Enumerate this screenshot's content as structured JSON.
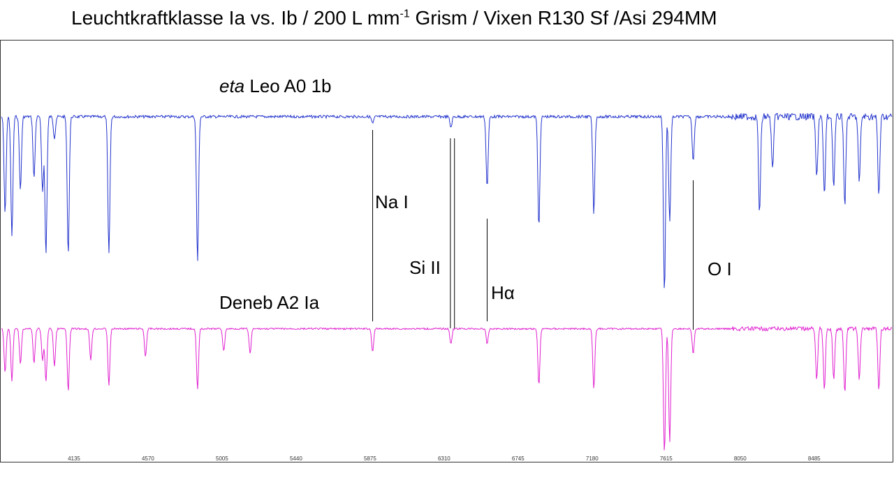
{
  "title": {
    "before": "Leuchtkraftklasse Ia vs. Ib / 200 L mm",
    "sup": "-1",
    "after": " Grism / Vixen R130 Sf /Asi 294MM"
  },
  "chart_data": {
    "type": "line",
    "title": "Leuchtkraftklasse Ia vs. Ib / 200 L mm-1 Grism / Vixen R130 Sf /Asi 294MM",
    "xlabel": "",
    "ylabel": "",
    "x_ticks": [
      4135,
      4570,
      5005,
      5440,
      5875,
      6310,
      6745,
      7180,
      7615,
      8050,
      8485
    ],
    "xlim": [
      3700,
      8950
    ],
    "y_axis": "relative flux (unlabeled, series vertically offset)",
    "grid": false,
    "legend": "inline text labels",
    "series": [
      {
        "name": "eta Leo A0 1b",
        "name_italic": "eta",
        "name_rest": " Leo A0 1b",
        "color": "#2233cc",
        "baseline": 0.82,
        "noise": 0.012,
        "lines": [
          [
            3730,
            0.55
          ],
          [
            3770,
            0.68
          ],
          [
            3820,
            0.42
          ],
          [
            3900,
            0.35
          ],
          [
            3950,
            0.42
          ],
          [
            3970,
            0.78
          ],
          [
            4020,
            0.12
          ],
          [
            4101,
            0.78
          ],
          [
            4340,
            0.78
          ],
          [
            4861,
            0.82
          ],
          [
            5890,
            0.04
          ],
          [
            6350,
            0.06
          ],
          [
            6563,
            0.4
          ],
          [
            6867,
            0.62
          ],
          [
            7190,
            0.55
          ],
          [
            7605,
            1.0
          ],
          [
            7636,
            0.6
          ],
          [
            7774,
            0.25
          ],
          [
            8164,
            0.55
          ],
          [
            8240,
            0.3
          ],
          [
            8500,
            0.35
          ],
          [
            8545,
            0.45
          ],
          [
            8600,
            0.4
          ],
          [
            8665,
            0.5
          ],
          [
            8750,
            0.38
          ],
          [
            8865,
            0.45
          ]
        ]
      },
      {
        "name": "Deneb A2 Ia",
        "color": "#e020d0",
        "baseline": 0.13,
        "noise": 0.01,
        "lines": [
          [
            3730,
            0.35
          ],
          [
            3770,
            0.42
          ],
          [
            3820,
            0.28
          ],
          [
            3900,
            0.28
          ],
          [
            3950,
            0.25
          ],
          [
            3970,
            0.42
          ],
          [
            4020,
            0.3
          ],
          [
            4101,
            0.5
          ],
          [
            4233,
            0.25
          ],
          [
            4340,
            0.45
          ],
          [
            4555,
            0.22
          ],
          [
            4861,
            0.48
          ],
          [
            5015,
            0.18
          ],
          [
            5170,
            0.2
          ],
          [
            5890,
            0.18
          ],
          [
            6350,
            0.12
          ],
          [
            6563,
            0.12
          ],
          [
            6867,
            0.45
          ],
          [
            7190,
            0.48
          ],
          [
            7605,
            1.0
          ],
          [
            7636,
            0.9
          ],
          [
            7774,
            0.2
          ],
          [
            8500,
            0.4
          ],
          [
            8545,
            0.48
          ],
          [
            8600,
            0.42
          ],
          [
            8665,
            0.52
          ],
          [
            8750,
            0.42
          ],
          [
            8865,
            0.48
          ]
        ]
      }
    ],
    "annotations": [
      {
        "text": "Na I",
        "x": 5890
      },
      {
        "text": "Si II",
        "x": 6347
      },
      {
        "text": "Si II",
        "x": 6371
      },
      {
        "text": "Hα",
        "x": 6563
      },
      {
        "text": "O I",
        "x": 7774
      }
    ]
  }
}
